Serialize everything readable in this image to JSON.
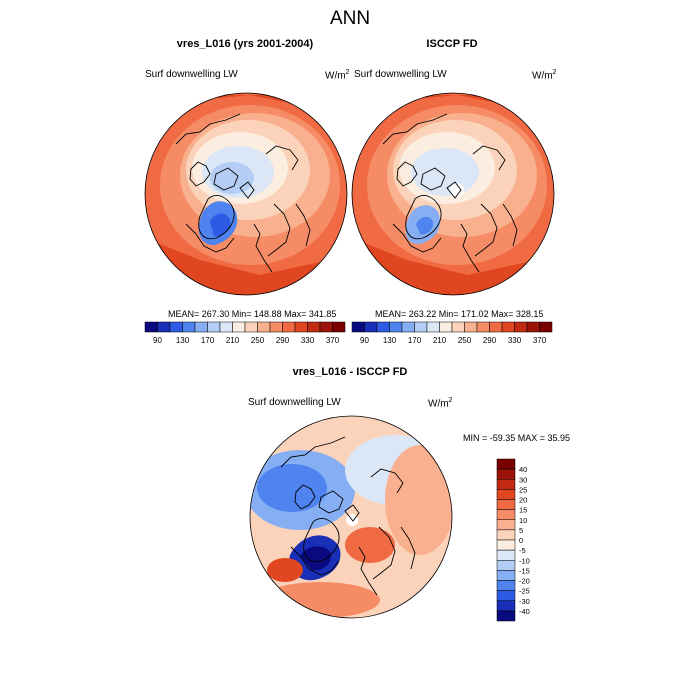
{
  "main_title": "ANN",
  "panels": [
    {
      "title": "vres_L016 (yrs 2001-2004)",
      "variable": "Surf downwelling LW",
      "units_base": "W/m",
      "units_exp": "2",
      "stats": "MEAN= 267.30  Min= 148.88  Max= 341.85"
    },
    {
      "title": "ISCCP FD",
      "variable": "Surf downwelling LW",
      "units_base": "W/m",
      "units_exp": "2",
      "stats": "MEAN= 263.22  Min= 171.02  Max= 328.15"
    },
    {
      "title": "vres_L016 - ISCCP FD",
      "variable": "Surf downwelling LW",
      "units_base": "W/m",
      "units_exp": "2",
      "stats": "MIN = -59.35 MAX =  35.95"
    }
  ],
  "colorbar_top": {
    "labels": [
      "90",
      "130",
      "170",
      "210",
      "250",
      "290",
      "330",
      "370"
    ],
    "colors": [
      "#0a0a80",
      "#1a2fb8",
      "#2e5ae6",
      "#4f84f0",
      "#86aef2",
      "#b4cdf4",
      "#dbe7f6",
      "#fbede0",
      "#fbd3bb",
      "#f9b08e",
      "#f68c66",
      "#f06a44",
      "#e0461f",
      "#c32a12",
      "#9b1208",
      "#7a0000"
    ]
  },
  "colorbar_diff": {
    "labels": [
      "40",
      "30",
      "25",
      "20",
      "15",
      "10",
      "5",
      "0",
      "-5",
      "-10",
      "-15",
      "-20",
      "-25",
      "-30",
      "-40"
    ],
    "colors": [
      "#7a0000",
      "#9b1208",
      "#c32a12",
      "#e0461f",
      "#f06a44",
      "#f68c66",
      "#f9b08e",
      "#fbd3bb",
      "#fbede0",
      "#dbe7f6",
      "#b4cdf4",
      "#86aef2",
      "#4f84f0",
      "#2e5ae6",
      "#1a2fb8",
      "#0a0a80"
    ]
  },
  "colors": {
    "land_line": "#000000",
    "warm": "#f06a44",
    "cool": "#4f84f0"
  }
}
